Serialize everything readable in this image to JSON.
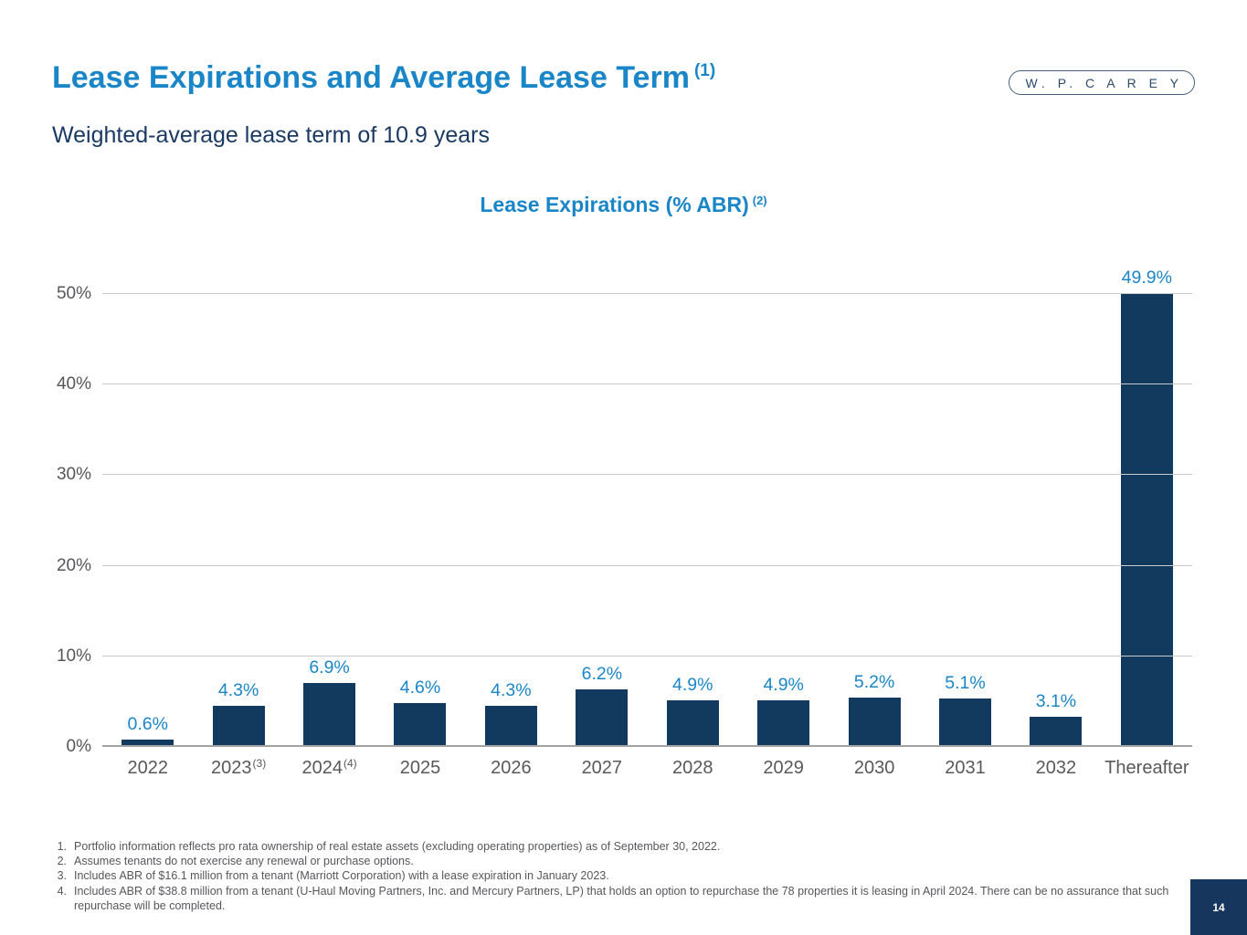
{
  "header": {
    "title": "Lease Expirations and Average Lease Term",
    "title_sup": "(1)",
    "subtitle": "Weighted-average lease term of 10.9 years",
    "logo_text": "W. P. C A R E Y"
  },
  "chart_data": {
    "type": "bar",
    "title": "Lease Expirations (% ABR)",
    "title_sup": "(2)",
    "categories": [
      "2022",
      "2023",
      "2024",
      "2025",
      "2026",
      "2027",
      "2028",
      "2029",
      "2030",
      "2031",
      "2032",
      "Thereafter"
    ],
    "category_sups": [
      "",
      "(3)",
      "(4)",
      "",
      "",
      "",
      "",
      "",
      "",
      "",
      "",
      ""
    ],
    "values": [
      0.6,
      4.3,
      6.9,
      4.6,
      4.3,
      6.2,
      4.9,
      4.9,
      5.2,
      5.1,
      3.1,
      49.9
    ],
    "value_labels": [
      "0.6%",
      "4.3%",
      "6.9%",
      "4.6%",
      "4.3%",
      "6.2%",
      "4.9%",
      "4.9%",
      "5.2%",
      "5.1%",
      "3.1%",
      "49.9%"
    ],
    "xlabel": "",
    "ylabel": "",
    "ylim": [
      0,
      50
    ],
    "ytick_step": 10,
    "ytick_labels": [
      "0%",
      "10%",
      "20%",
      "30%",
      "40%",
      "50%"
    ],
    "grid": true,
    "legend": false,
    "bar_color": "#123a5f",
    "value_label_color": "#1a86c8"
  },
  "footnotes": [
    {
      "num": "1.",
      "text": "Portfolio information reflects pro rata ownership of real estate assets (excluding operating properties) as of September 30, 2022."
    },
    {
      "num": "2.",
      "text": "Assumes tenants do not exercise any renewal or purchase options."
    },
    {
      "num": "3.",
      "text": "Includes ABR of $16.1 million from a tenant (Marriott Corporation) with a lease expiration in January 2023."
    },
    {
      "num": "4.",
      "text": "Includes ABR of $38.8 million from a tenant (U-Haul Moving Partners, Inc. and Mercury Partners, LP) that holds an option to repurchase the 78 properties it is leasing in April 2024. There can be no assurance that such repurchase will be completed."
    }
  ],
  "page_number": "14"
}
